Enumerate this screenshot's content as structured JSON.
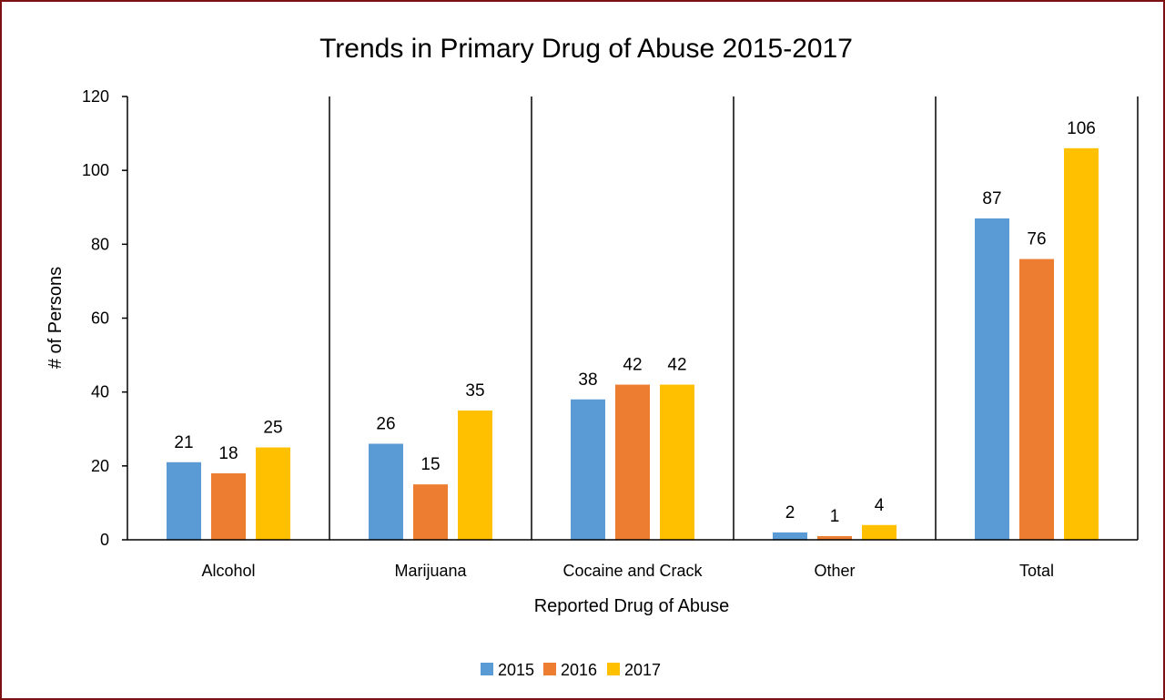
{
  "chart_data": {
    "type": "bar",
    "title": "Trends in Primary Drug of Abuse 2015-2017",
    "xlabel": "Reported Drug of Abuse",
    "ylabel": "# of Persons",
    "categories": [
      "Alcohol",
      "Marijuana",
      "Cocaine and Crack",
      "Other",
      "Total"
    ],
    "series": [
      {
        "name": "2015",
        "color": "#5b9bd5",
        "values": [
          21,
          26,
          38,
          2,
          87
        ]
      },
      {
        "name": "2016",
        "color": "#ed7d31",
        "values": [
          18,
          15,
          42,
          1,
          76
        ]
      },
      {
        "name": "2017",
        "color": "#ffc000",
        "values": [
          25,
          35,
          42,
          4,
          106
        ]
      }
    ],
    "ylim": [
      0,
      120
    ],
    "yticks": [
      0,
      20,
      40,
      60,
      80,
      100,
      120
    ],
    "data_labels": true,
    "category_dividers": true,
    "grid": false,
    "legend_position": "bottom",
    "frame_color": "#7b1113"
  }
}
